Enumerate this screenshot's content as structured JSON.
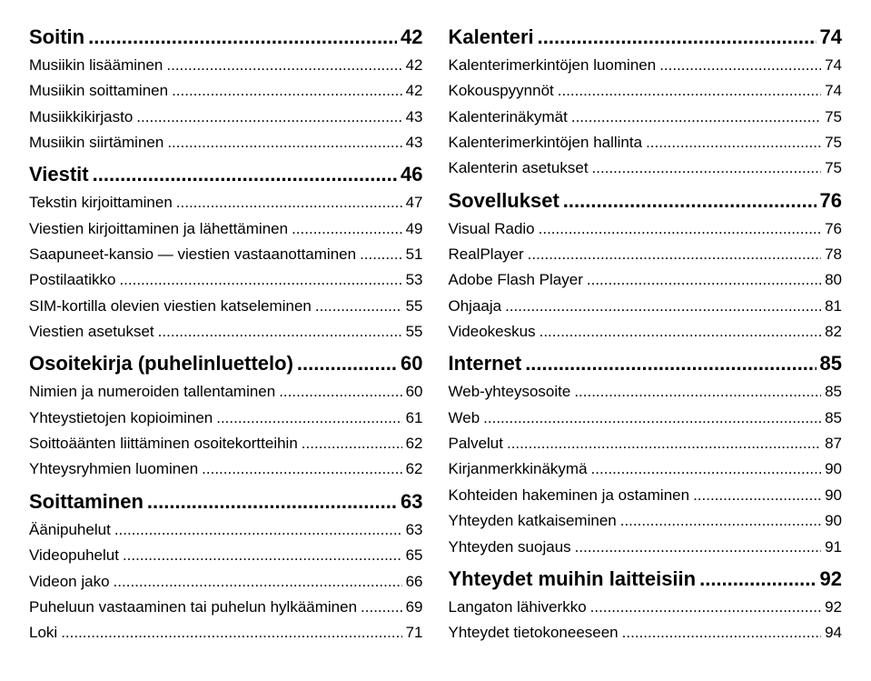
{
  "colors": {
    "background": "#ffffff",
    "text": "#000000"
  },
  "typography": {
    "heading_fontsize": 22,
    "entry_fontsize": 17,
    "font_family": "Arial, Helvetica, sans-serif"
  },
  "columns": [
    {
      "items": [
        {
          "level": "h1",
          "label": "Soitin",
          "page": "42"
        },
        {
          "level": "entry",
          "label": "Musiikin lisääminen",
          "page": "42"
        },
        {
          "level": "entry",
          "label": "Musiikin soittaminen",
          "page": "42"
        },
        {
          "level": "entry",
          "label": "Musiikkikirjasto",
          "page": "43"
        },
        {
          "level": "entry",
          "label": "Musiikin siirtäminen",
          "page": "43"
        },
        {
          "level": "h1",
          "label": "Viestit",
          "page": "46"
        },
        {
          "level": "entry",
          "label": "Tekstin kirjoittaminen",
          "page": "47"
        },
        {
          "level": "entry",
          "label": "Viestien kirjoittaminen ja lähettäminen",
          "page": "49"
        },
        {
          "level": "entry",
          "label": "Saapuneet-kansio — viestien vastaanottaminen",
          "page": "51"
        },
        {
          "level": "entry",
          "label": "Postilaatikko",
          "page": "53"
        },
        {
          "level": "entry",
          "label": "SIM-kortilla olevien viestien katseleminen",
          "page": "55"
        },
        {
          "level": "entry",
          "label": "Viestien asetukset",
          "page": "55"
        },
        {
          "level": "h1",
          "label": "Osoitekirja (puhelinluettelo)",
          "page": "60"
        },
        {
          "level": "entry",
          "label": "Nimien ja numeroiden tallentaminen",
          "page": "60"
        },
        {
          "level": "entry",
          "label": "Yhteystietojen kopioiminen",
          "page": "61"
        },
        {
          "level": "entry",
          "label": "Soittoäänten liittäminen osoitekortteihin",
          "page": "62"
        },
        {
          "level": "entry",
          "label": "Yhteysryhmien luominen",
          "page": "62"
        },
        {
          "level": "h1",
          "label": "Soittaminen",
          "page": "63"
        },
        {
          "level": "entry",
          "label": "Äänipuhelut",
          "page": "63"
        },
        {
          "level": "entry",
          "label": "Videopuhelut",
          "page": "65"
        },
        {
          "level": "entry",
          "label": "Videon jako",
          "page": "66"
        },
        {
          "level": "entry",
          "label": "Puheluun vastaaminen tai puhelun hylkääminen",
          "page": "69"
        },
        {
          "level": "entry",
          "label": "Loki",
          "page": "71"
        }
      ]
    },
    {
      "items": [
        {
          "level": "h1",
          "label": "Kalenteri",
          "page": "74"
        },
        {
          "level": "entry",
          "label": "Kalenterimerkintöjen luominen",
          "page": "74"
        },
        {
          "level": "entry",
          "label": "Kokouspyynnöt",
          "page": "74"
        },
        {
          "level": "entry",
          "label": "Kalenterinäkymät",
          "page": "75"
        },
        {
          "level": "entry",
          "label": "Kalenterimerkintöjen hallinta",
          "page": "75"
        },
        {
          "level": "entry",
          "label": "Kalenterin asetukset",
          "page": "75"
        },
        {
          "level": "h1",
          "label": "Sovellukset",
          "page": "76"
        },
        {
          "level": "entry",
          "label": "Visual Radio",
          "page": "76"
        },
        {
          "level": "entry",
          "label": "RealPlayer",
          "page": "78"
        },
        {
          "level": "entry",
          "label": "Adobe Flash Player",
          "page": "80"
        },
        {
          "level": "entry",
          "label": "Ohjaaja",
          "page": "81"
        },
        {
          "level": "entry",
          "label": "Videokeskus",
          "page": "82"
        },
        {
          "level": "h1",
          "label": "Internet",
          "page": "85"
        },
        {
          "level": "entry",
          "label": "Web-yhteysosoite",
          "page": "85"
        },
        {
          "level": "entry",
          "label": "Web",
          "page": "85"
        },
        {
          "level": "entry",
          "label": "Palvelut",
          "page": "87"
        },
        {
          "level": "entry",
          "label": "Kirjanmerkkinäkymä",
          "page": "90"
        },
        {
          "level": "entry",
          "label": "Kohteiden hakeminen ja ostaminen",
          "page": "90"
        },
        {
          "level": "entry",
          "label": "Yhteyden katkaiseminen",
          "page": "90"
        },
        {
          "level": "entry",
          "label": "Yhteyden suojaus",
          "page": "91"
        },
        {
          "level": "h1",
          "label": "Yhteydet muihin laitteisiin",
          "page": "92"
        },
        {
          "level": "entry",
          "label": "Langaton lähiverkko",
          "page": "92"
        },
        {
          "level": "entry",
          "label": "Yhteydet tietokoneeseen",
          "page": "94"
        }
      ]
    }
  ]
}
